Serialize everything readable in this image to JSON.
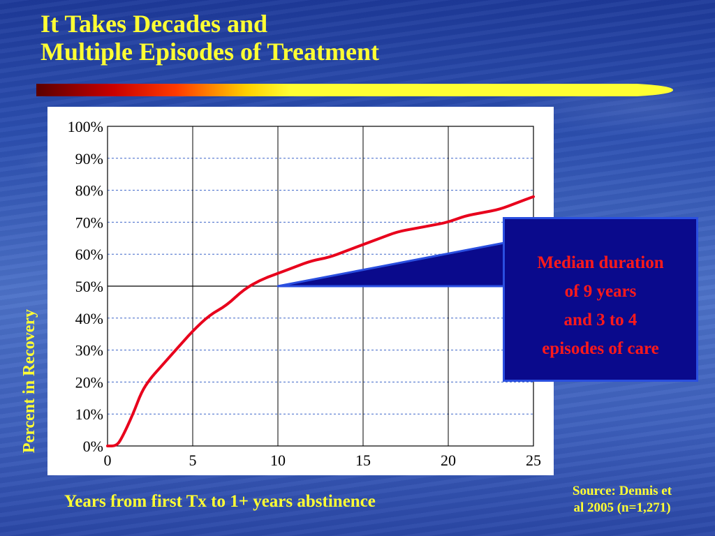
{
  "slide": {
    "title_lines": [
      "It Takes Decades and",
      "Multiple Episodes of Treatment"
    ],
    "colors": {
      "title": "#ffff33",
      "callout_text": "#ff1a1a",
      "callout_fill": "#0a0a8c",
      "line": "#e8001c"
    }
  },
  "chart_data": {
    "type": "line",
    "xlabel": "Years from first Tx to 1+ years abstinence",
    "ylabel": "Percent in Recovery",
    "xlim": [
      0,
      25
    ],
    "ylim": [
      0,
      100
    ],
    "x_ticks": [
      "0",
      "5",
      "10",
      "15",
      "20",
      "25"
    ],
    "y_ticks": [
      "0%",
      "10%",
      "20%",
      "30%",
      "40%",
      "50%",
      "60%",
      "70%",
      "80%",
      "90%",
      "100%"
    ],
    "grid": true,
    "series": [
      {
        "points": [
          [
            0,
            0
          ],
          [
            0.5,
            0
          ],
          [
            0.8,
            2
          ],
          [
            1.5,
            10
          ],
          [
            2,
            17
          ],
          [
            2.5,
            21
          ],
          [
            3,
            24
          ],
          [
            4,
            30
          ],
          [
            5,
            36
          ],
          [
            6,
            41
          ],
          [
            7,
            44
          ],
          [
            8,
            49
          ],
          [
            9,
            52
          ],
          [
            10,
            54
          ],
          [
            11,
            56
          ],
          [
            12,
            58
          ],
          [
            13,
            59
          ],
          [
            14,
            61
          ],
          [
            15,
            63
          ],
          [
            16,
            65
          ],
          [
            17,
            67
          ],
          [
            18,
            68
          ],
          [
            19,
            69
          ],
          [
            20,
            70
          ],
          [
            21,
            72
          ],
          [
            22,
            73
          ],
          [
            23,
            74
          ],
          [
            24,
            76
          ],
          [
            25,
            78
          ]
        ]
      }
    ]
  },
  "callout": {
    "lines": [
      "Median duration",
      "of 9 years",
      "and 3 to 4",
      "episodes of care"
    ],
    "anchor": {
      "x": 10,
      "y": 50
    }
  },
  "source": {
    "lines": [
      "Source: Dennis et",
      "al 2005 (n=1,271)"
    ]
  }
}
